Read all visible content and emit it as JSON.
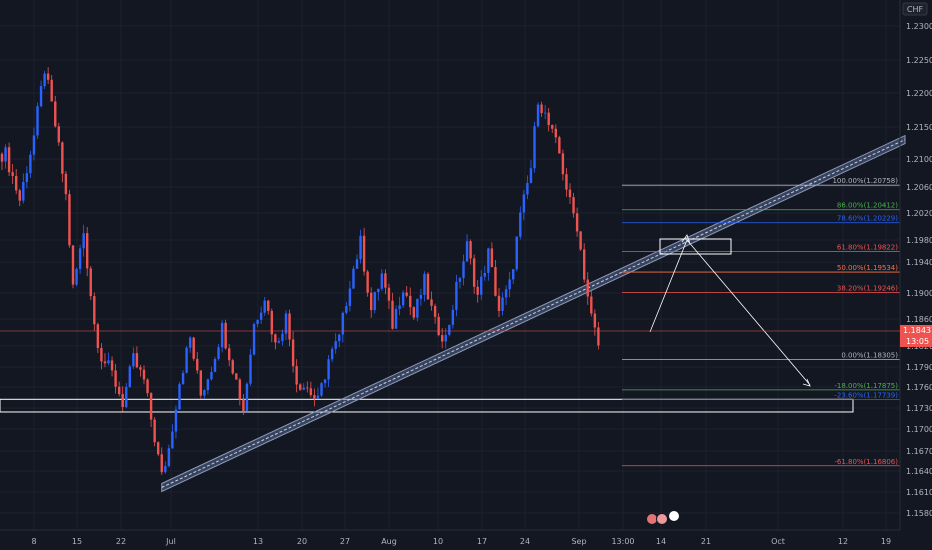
{
  "chart_data": {
    "type": "candlestick",
    "currency_label": "CHF",
    "colors": {
      "background": "#131722",
      "up": "#2962ff",
      "down": "#ef5350",
      "grid": "#1e222d",
      "axis_text": "#b2b5be",
      "channel": "#8d9bb5",
      "box": "#ffffff"
    },
    "y_ticks": [
      "1.23000",
      "1.22500",
      "1.22000",
      "1.21500",
      "1.21000",
      "1.20600",
      "1.20200",
      "1.19800",
      "1.19400",
      "1.19000",
      "1.18600",
      "1.18200",
      "1.17900",
      "1.17600",
      "1.17300",
      "1.17000",
      "1.16700",
      "1.16400",
      "1.16100",
      "1.15800"
    ],
    "x_ticks": [
      "8",
      "15",
      "22",
      "Jul",
      "13",
      "20",
      "27",
      "Aug",
      "10",
      "17",
      "24",
      "Sep",
      "13:00",
      "14",
      "21",
      "Oct",
      "12",
      "19"
    ],
    "price_path": [
      {
        "x": 1,
        "y": 1.212
      },
      {
        "x": 5,
        "y": 1.2055
      },
      {
        "x": 9,
        "y": 1.2145
      },
      {
        "x": 12,
        "y": 1.224
      },
      {
        "x": 15,
        "y": 1.216
      },
      {
        "x": 18,
        "y": 1.206
      },
      {
        "x": 20,
        "y": 1.193
      },
      {
        "x": 23,
        "y": 1.201
      },
      {
        "x": 26,
        "y": 1.188
      },
      {
        "x": 28,
        "y": 1.1835
      },
      {
        "x": 31,
        "y": 1.181
      },
      {
        "x": 34,
        "y": 1.177
      },
      {
        "x": 37,
        "y": 1.183
      },
      {
        "x": 40,
        "y": 1.18
      },
      {
        "x": 43,
        "y": 1.172
      },
      {
        "x": 45,
        "y": 1.1665
      },
      {
        "x": 47,
        "y": 1.1705
      },
      {
        "x": 50,
        "y": 1.18
      },
      {
        "x": 53,
        "y": 1.186
      },
      {
        "x": 56,
        "y": 1.178
      },
      {
        "x": 59,
        "y": 1.182
      },
      {
        "x": 62,
        "y": 1.1875
      },
      {
        "x": 65,
        "y": 1.182
      },
      {
        "x": 68,
        "y": 1.176
      },
      {
        "x": 71,
        "y": 1.188
      },
      {
        "x": 74,
        "y": 1.192
      },
      {
        "x": 77,
        "y": 1.185
      },
      {
        "x": 80,
        "y": 1.189
      },
      {
        "x": 83,
        "y": 1.18
      },
      {
        "x": 86,
        "y": 1.179
      },
      {
        "x": 89,
        "y": 1.177
      },
      {
        "x": 92,
        "y": 1.183
      },
      {
        "x": 95,
        "y": 1.186
      },
      {
        "x": 98,
        "y": 1.194
      },
      {
        "x": 101,
        "y": 1.1995
      },
      {
        "x": 104,
        "y": 1.19
      },
      {
        "x": 107,
        "y": 1.195
      },
      {
        "x": 110,
        "y": 1.188
      },
      {
        "x": 113,
        "y": 1.1935
      },
      {
        "x": 116,
        "y": 1.189
      },
      {
        "x": 119,
        "y": 1.194
      },
      {
        "x": 122,
        "y": 1.188
      },
      {
        "x": 125,
        "y": 1.186
      },
      {
        "x": 128,
        "y": 1.193
      },
      {
        "x": 131,
        "y": 1.199
      },
      {
        "x": 134,
        "y": 1.192
      },
      {
        "x": 137,
        "y": 1.198
      },
      {
        "x": 140,
        "y": 1.19
      },
      {
        "x": 143,
        "y": 1.1935
      },
      {
        "x": 146,
        "y": 1.203
      },
      {
        "x": 149,
        "y": 1.21
      },
      {
        "x": 151,
        "y": 1.22
      },
      {
        "x": 154,
        "y": 1.216
      },
      {
        "x": 157,
        "y": 1.212
      },
      {
        "x": 160,
        "y": 1.205
      },
      {
        "x": 162,
        "y": 1.202
      },
      {
        "x": 164,
        "y": 1.195
      },
      {
        "x": 166,
        "y": 1.189
      },
      {
        "x": 168,
        "y": 1.185
      }
    ],
    "last_price": "1.18431",
    "countdown": "13:05",
    "fib_levels": [
      {
        "label": "100.00%(1.20758)",
        "value": 1.20758,
        "color": "#b2b5be"
      },
      {
        "label": "86.00%(1.20412)",
        "value": 1.20412,
        "color": "#4caf50"
      },
      {
        "label": "78.60%(1.20229)",
        "value": 1.20229,
        "color": "#2962ff"
      },
      {
        "label": "61.80%(1.19822)",
        "value": 1.19822,
        "color": "#ef5350"
      },
      {
        "label": "50.00%(1.19534)",
        "value": 1.19534,
        "color": "#ff7043"
      },
      {
        "label": "38.20%(1.19246)",
        "value": 1.19246,
        "color": "#ef5350"
      },
      {
        "label": "0.00%(1.18305)",
        "value": 1.18305,
        "color": "#b2b5be"
      },
      {
        "label": "-18.00%(1.17875)",
        "value": 1.17875,
        "color": "#4caf50"
      },
      {
        "label": "-23.60%(1.17739)",
        "value": 1.17739,
        "color": "#2962ff"
      },
      {
        "label": "-61.80%(1.16806)",
        "value": 1.16806,
        "color": "#ef5350"
      }
    ],
    "channel": {
      "start": {
        "x": 45,
        "y": 1.165
      },
      "end": {
        "x": 240,
        "y": 1.214
      }
    },
    "support_zone": {
      "x_start": 0,
      "x_end": 222,
      "y_top": 1.177,
      "y_bottom": 1.1762
    },
    "target_box": {
      "x_start": 172,
      "x_end": 190,
      "y_top": 1.1981,
      "y_bottom": 1.1966
    },
    "projection": [
      {
        "x": 168,
        "y": 1.1838
      },
      {
        "x": 179,
        "y": 1.197
      },
      {
        "x": 211,
        "y": 1.1775
      }
    ],
    "event_badges": [
      "icon-a",
      "icon-b",
      "icon-c"
    ]
  }
}
